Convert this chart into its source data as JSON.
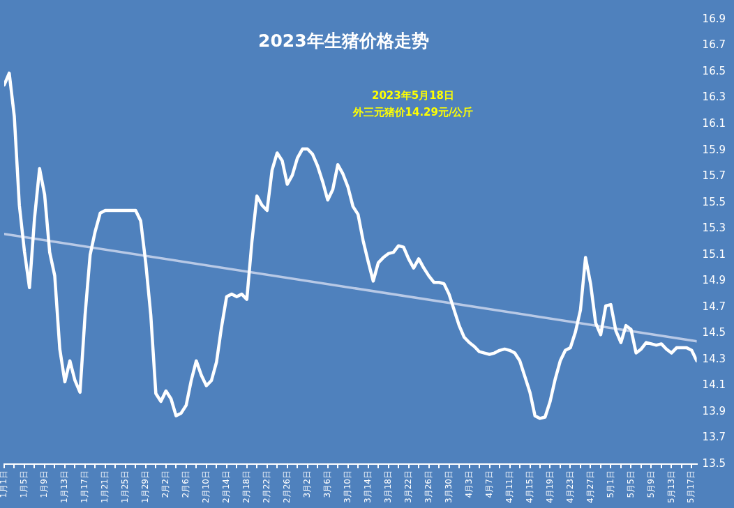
{
  "chart_data": {
    "type": "line",
    "title": "2023年生猪价格走势",
    "annotations": [
      "2023年5月18日",
      "外三元猪价14.29元/公斤"
    ],
    "x": [
      "2023-01-01",
      "2023-01-02",
      "2023-01-03",
      "2023-01-04",
      "2023-01-05",
      "2023-01-06",
      "2023-01-07",
      "2023-01-08",
      "2023-01-09",
      "2023-01-10",
      "2023-01-11",
      "2023-01-12",
      "2023-01-13",
      "2023-01-14",
      "2023-01-15",
      "2023-01-16",
      "2023-01-17",
      "2023-01-18",
      "2023-01-19",
      "2023-01-20",
      "2023-01-21",
      "2023-01-22",
      "2023-01-23",
      "2023-01-24",
      "2023-01-25",
      "2023-01-26",
      "2023-01-27",
      "2023-01-28",
      "2023-01-29",
      "2023-01-30",
      "2023-01-31",
      "2023-02-01",
      "2023-02-02",
      "2023-02-03",
      "2023-02-04",
      "2023-02-05",
      "2023-02-06",
      "2023-02-07",
      "2023-02-08",
      "2023-02-09",
      "2023-02-10",
      "2023-02-11",
      "2023-02-12",
      "2023-02-13",
      "2023-02-14",
      "2023-02-15",
      "2023-02-16",
      "2023-02-17",
      "2023-02-18",
      "2023-02-19",
      "2023-02-20",
      "2023-02-21",
      "2023-02-22",
      "2023-02-23",
      "2023-02-24",
      "2023-02-25",
      "2023-02-26",
      "2023-02-27",
      "2023-02-28",
      "2023-03-01",
      "2023-03-02",
      "2023-03-03",
      "2023-03-04",
      "2023-03-05",
      "2023-03-06",
      "2023-03-07",
      "2023-03-08",
      "2023-03-09",
      "2023-03-10",
      "2023-03-11",
      "2023-03-12",
      "2023-03-13",
      "2023-03-14",
      "2023-03-15",
      "2023-03-16",
      "2023-03-17",
      "2023-03-18",
      "2023-03-19",
      "2023-03-20",
      "2023-03-21",
      "2023-03-22",
      "2023-03-23",
      "2023-03-24",
      "2023-03-25",
      "2023-03-26",
      "2023-03-27",
      "2023-03-28",
      "2023-03-29",
      "2023-03-30",
      "2023-03-31",
      "2023-04-01",
      "2023-04-02",
      "2023-04-03",
      "2023-04-04",
      "2023-04-05",
      "2023-04-06",
      "2023-04-07",
      "2023-04-08",
      "2023-04-09",
      "2023-04-10",
      "2023-04-11",
      "2023-04-12",
      "2023-04-13",
      "2023-04-14",
      "2023-04-15",
      "2023-04-16",
      "2023-04-17",
      "2023-04-18",
      "2023-04-19",
      "2023-04-20",
      "2023-04-21",
      "2023-04-22",
      "2023-04-23",
      "2023-04-24",
      "2023-04-25",
      "2023-04-26",
      "2023-04-27",
      "2023-04-28",
      "2023-04-29",
      "2023-04-30",
      "2023-05-01",
      "2023-05-02",
      "2023-05-03",
      "2023-05-04",
      "2023-05-05",
      "2023-05-06",
      "2023-05-07",
      "2023-05-08",
      "2023-05-09",
      "2023-05-10",
      "2023-05-11",
      "2023-05-12",
      "2023-05-13",
      "2023-05-14",
      "2023-05-15",
      "2023-05-16",
      "2023-05-17",
      "2023-05-18"
    ],
    "series": [
      {
        "color": "#ffffff",
        "values": [
          16.4,
          16.49,
          16.16,
          15.48,
          15.13,
          14.85,
          15.38,
          15.76,
          15.56,
          15.12,
          14.94,
          14.38,
          14.13,
          14.29,
          14.14,
          14.05,
          14.64,
          15.1,
          15.28,
          15.42,
          15.44,
          15.44,
          15.44,
          15.44,
          15.44,
          15.44,
          15.44,
          15.36,
          15.04,
          14.64,
          14.04,
          13.98,
          14.06,
          14.0,
          13.87,
          13.89,
          13.95,
          14.14,
          14.29,
          14.18,
          14.1,
          14.14,
          14.28,
          14.55,
          14.78,
          14.8,
          14.78,
          14.8,
          14.76,
          15.2,
          15.55,
          15.48,
          15.44,
          15.75,
          15.88,
          15.82,
          15.64,
          15.71,
          15.84,
          15.91,
          15.91,
          15.87,
          15.78,
          15.66,
          15.52,
          15.6,
          15.79,
          15.72,
          15.62,
          15.47,
          15.41,
          15.21,
          15.05,
          14.9,
          15.04,
          15.08,
          15.11,
          15.12,
          15.17,
          15.16,
          15.07,
          15.0,
          15.07,
          15.0,
          14.94,
          14.89,
          14.89,
          14.88,
          14.8,
          14.68,
          14.56,
          14.47,
          14.43,
          14.4,
          14.36,
          14.35,
          14.34,
          14.35,
          14.37,
          14.38,
          14.37,
          14.35,
          14.29,
          14.17,
          14.05,
          13.87,
          13.85,
          13.86,
          13.98,
          14.15,
          14.29,
          14.37,
          14.39,
          14.51,
          14.68,
          15.08,
          14.88,
          14.58,
          14.49,
          14.71,
          14.72,
          14.52,
          14.43,
          14.56,
          14.53,
          14.35,
          14.38,
          14.43,
          14.42,
          14.41,
          14.42,
          14.38,
          14.35,
          14.39,
          14.39,
          14.39,
          14.37,
          14.29
        ]
      },
      {
        "type": "line",
        "color": "#b8c9e6",
        "x": [
          "2023-01-01",
          "2023-05-18"
        ],
        "values": [
          15.26,
          14.44
        ]
      }
    ],
    "xlim": [
      "2023-01-01",
      "2023-05-18"
    ],
    "xticks": [
      {
        "value": "2023-01-01",
        "label": "1月1日"
      },
      {
        "value": "2023-01-03",
        "label": null
      },
      {
        "value": "2023-01-05",
        "label": "1月5日"
      },
      {
        "value": "2023-01-07",
        "label": null
      },
      {
        "value": "2023-01-09",
        "label": "1月9日"
      },
      {
        "value": "2023-01-11",
        "label": null
      },
      {
        "value": "2023-01-13",
        "label": "1月13日"
      },
      {
        "value": "2023-01-15",
        "label": null
      },
      {
        "value": "2023-01-17",
        "label": "1月17日"
      },
      {
        "value": "2023-01-19",
        "label": null
      },
      {
        "value": "2023-01-21",
        "label": "1月21日"
      },
      {
        "value": "2023-01-23",
        "label": null
      },
      {
        "value": "2023-01-25",
        "label": "1月25日"
      },
      {
        "value": "2023-01-27",
        "label": null
      },
      {
        "value": "2023-01-29",
        "label": "1月29日"
      },
      {
        "value": "2023-01-31",
        "label": null
      },
      {
        "value": "2023-02-02",
        "label": "2月2日"
      },
      {
        "value": "2023-02-04",
        "label": null
      },
      {
        "value": "2023-02-06",
        "label": "2月6日"
      },
      {
        "value": "2023-02-08",
        "label": null
      },
      {
        "value": "2023-02-10",
        "label": "2月10日"
      },
      {
        "value": "2023-02-12",
        "label": null
      },
      {
        "value": "2023-02-14",
        "label": "2月14日"
      },
      {
        "value": "2023-02-16",
        "label": null
      },
      {
        "value": "2023-02-18",
        "label": "2月18日"
      },
      {
        "value": "2023-02-20",
        "label": null
      },
      {
        "value": "2023-02-22",
        "label": "2月22日"
      },
      {
        "value": "2023-02-24",
        "label": null
      },
      {
        "value": "2023-02-26",
        "label": "2月26日"
      },
      {
        "value": "2023-02-28",
        "label": null
      },
      {
        "value": "2023-03-02",
        "label": "3月2日"
      },
      {
        "value": "2023-03-04",
        "label": null
      },
      {
        "value": "2023-03-06",
        "label": "3月6日"
      },
      {
        "value": "2023-03-08",
        "label": null
      },
      {
        "value": "2023-03-10",
        "label": "3月10日"
      },
      {
        "value": "2023-03-12",
        "label": null
      },
      {
        "value": "2023-03-14",
        "label": "3月14日"
      },
      {
        "value": "2023-03-16",
        "label": null
      },
      {
        "value": "2023-03-18",
        "label": "3月18日"
      },
      {
        "value": "2023-03-20",
        "label": null
      },
      {
        "value": "2023-03-22",
        "label": "3月22日"
      },
      {
        "value": "2023-03-24",
        "label": null
      },
      {
        "value": "2023-03-26",
        "label": "3月26日"
      },
      {
        "value": "2023-03-28",
        "label": null
      },
      {
        "value": "2023-03-30",
        "label": "3月30日"
      },
      {
        "value": "2023-04-01",
        "label": null
      },
      {
        "value": "2023-04-03",
        "label": "4月3日"
      },
      {
        "value": "2023-04-05",
        "label": null
      },
      {
        "value": "2023-04-07",
        "label": "4月7日"
      },
      {
        "value": "2023-04-09",
        "label": null
      },
      {
        "value": "2023-04-11",
        "label": "4月11日"
      },
      {
        "value": "2023-04-13",
        "label": null
      },
      {
        "value": "2023-04-15",
        "label": "4月15日"
      },
      {
        "value": "2023-04-17",
        "label": null
      },
      {
        "value": "2023-04-19",
        "label": "4月19日"
      },
      {
        "value": "2023-04-21",
        "label": null
      },
      {
        "value": "2023-04-23",
        "label": "4月23日"
      },
      {
        "value": "2023-04-25",
        "label": null
      },
      {
        "value": "2023-04-27",
        "label": "4月27日"
      },
      {
        "value": "2023-04-29",
        "label": null
      },
      {
        "value": "2023-05-01",
        "label": "5月1日"
      },
      {
        "value": "2023-05-03",
        "label": null
      },
      {
        "value": "2023-05-05",
        "label": "5月5日"
      },
      {
        "value": "2023-05-07",
        "label": null
      },
      {
        "value": "2023-05-09",
        "label": "5月9日"
      },
      {
        "value": "2023-05-11",
        "label": null
      },
      {
        "value": "2023-05-13",
        "label": "5月13日"
      },
      {
        "value": "2023-05-15",
        "label": null
      },
      {
        "value": "2023-05-17",
        "label": "5月17日"
      }
    ],
    "ylim": [
      13.5,
      16.9
    ],
    "yticks": [
      13.5,
      13.7,
      13.9,
      14.1,
      14.3,
      14.5,
      14.7,
      14.9,
      15.1,
      15.3,
      15.5,
      15.7,
      15.9,
      16.1,
      16.3,
      16.5,
      16.7,
      16.9
    ],
    "grid": false,
    "legend": false,
    "marker": "none",
    "line_style": "solid"
  }
}
